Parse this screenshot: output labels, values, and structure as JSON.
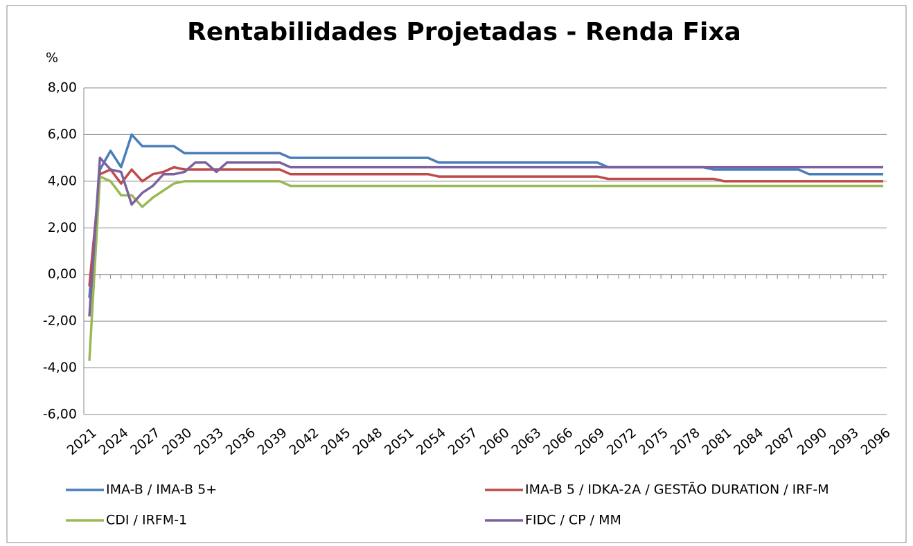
{
  "chart_data": {
    "type": "line",
    "title": "Rentabilidades Projetadas - Renda Fixa",
    "y_label": "%",
    "categories": [
      "2021",
      null,
      null,
      "2024",
      null,
      null,
      "2027",
      null,
      null,
      "2030",
      null,
      null,
      "2033",
      null,
      null,
      "2036",
      null,
      null,
      "2039",
      null,
      null,
      "2042",
      null,
      null,
      "2045",
      null,
      null,
      "2048",
      null,
      null,
      "2051",
      null,
      null,
      "2054",
      null,
      null,
      "2057",
      null,
      null,
      "2060",
      null,
      null,
      "2063",
      null,
      null,
      "2066",
      null,
      null,
      "2069",
      null,
      null,
      "2072",
      null,
      null,
      "2075",
      null,
      null,
      "2078",
      null,
      null,
      "2081",
      null,
      null,
      "2084",
      null,
      null,
      "2087",
      null,
      null,
      "2090",
      null,
      null,
      "2093",
      null,
      null,
      "2096"
    ],
    "ylim": [
      -6,
      8
    ],
    "yticks": [
      {
        "value": -6,
        "label": "-6,00"
      },
      {
        "value": -4,
        "label": "-4,00"
      },
      {
        "value": -2,
        "label": "-2,00"
      },
      {
        "value": 0,
        "label": "0,00"
      },
      {
        "value": 2,
        "label": "2,00"
      },
      {
        "value": 4,
        "label": "4,00"
      },
      {
        "value": 6,
        "label": "6,00"
      },
      {
        "value": 8,
        "label": "8,00"
      }
    ],
    "grid": true,
    "series": [
      {
        "name": "IMA-B / IMA-B 5+",
        "color": "#4a7ebb",
        "values": [
          -1.0,
          4.5,
          5.3,
          4.6,
          6.0,
          5.5,
          5.5,
          5.5,
          5.5,
          5.2,
          5.2,
          5.2,
          5.2,
          5.2,
          5.2,
          5.2,
          5.2,
          5.2,
          5.2,
          5.0,
          5.0,
          5.0,
          5.0,
          5.0,
          5.0,
          5.0,
          5.0,
          5.0,
          5.0,
          5.0,
          5.0,
          5.0,
          5.0,
          4.8,
          4.8,
          4.8,
          4.8,
          4.8,
          4.8,
          4.8,
          4.8,
          4.8,
          4.8,
          4.8,
          4.8,
          4.8,
          4.8,
          4.8,
          4.8,
          4.6,
          4.6,
          4.6,
          4.6,
          4.6,
          4.6,
          4.6,
          4.6,
          4.6,
          4.6,
          4.5,
          4.5,
          4.5,
          4.5,
          4.5,
          4.5,
          4.5,
          4.5,
          4.5,
          4.3,
          4.3,
          4.3,
          4.3,
          4.3,
          4.3,
          4.3,
          4.3
        ]
      },
      {
        "name": "IMA-B 5 / IDKA-2A / GESTÃO DURATION / IRF-M",
        "color": "#be4b48",
        "values": [
          -0.5,
          4.3,
          4.5,
          3.9,
          4.5,
          4.0,
          4.3,
          4.4,
          4.6,
          4.5,
          4.5,
          4.5,
          4.5,
          4.5,
          4.5,
          4.5,
          4.5,
          4.5,
          4.5,
          4.3,
          4.3,
          4.3,
          4.3,
          4.3,
          4.3,
          4.3,
          4.3,
          4.3,
          4.3,
          4.3,
          4.3,
          4.3,
          4.3,
          4.2,
          4.2,
          4.2,
          4.2,
          4.2,
          4.2,
          4.2,
          4.2,
          4.2,
          4.2,
          4.2,
          4.2,
          4.2,
          4.2,
          4.2,
          4.2,
          4.1,
          4.1,
          4.1,
          4.1,
          4.1,
          4.1,
          4.1,
          4.1,
          4.1,
          4.1,
          4.1,
          4.0,
          4.0,
          4.0,
          4.0,
          4.0,
          4.0,
          4.0,
          4.0,
          4.0,
          4.0,
          4.0,
          4.0,
          4.0,
          4.0,
          4.0,
          4.0
        ]
      },
      {
        "name": "CDI / IRFM-1",
        "color": "#98b954",
        "values": [
          -3.7,
          4.2,
          4.0,
          3.4,
          3.4,
          2.9,
          3.3,
          3.6,
          3.9,
          4.0,
          4.0,
          4.0,
          4.0,
          4.0,
          4.0,
          4.0,
          4.0,
          4.0,
          4.0,
          3.8,
          3.8,
          3.8,
          3.8,
          3.8,
          3.8,
          3.8,
          3.8,
          3.8,
          3.8,
          3.8,
          3.8,
          3.8,
          3.8,
          3.8,
          3.8,
          3.8,
          3.8,
          3.8,
          3.8,
          3.8,
          3.8,
          3.8,
          3.8,
          3.8,
          3.8,
          3.8,
          3.8,
          3.8,
          3.8,
          3.8,
          3.8,
          3.8,
          3.8,
          3.8,
          3.8,
          3.8,
          3.8,
          3.8,
          3.8,
          3.8,
          3.8,
          3.8,
          3.8,
          3.8,
          3.8,
          3.8,
          3.8,
          3.8,
          3.8,
          3.8,
          3.8,
          3.8,
          3.8,
          3.8,
          3.8,
          3.8
        ]
      },
      {
        "name": "FIDC / CP / MM",
        "color": "#7d60a0",
        "values": [
          -1.8,
          5.0,
          4.5,
          4.4,
          3.0,
          3.5,
          3.8,
          4.3,
          4.3,
          4.4,
          4.8,
          4.8,
          4.4,
          4.8,
          4.8,
          4.8,
          4.8,
          4.8,
          4.8,
          4.6,
          4.6,
          4.6,
          4.6,
          4.6,
          4.6,
          4.6,
          4.6,
          4.6,
          4.6,
          4.6,
          4.6,
          4.6,
          4.6,
          4.6,
          4.6,
          4.6,
          4.6,
          4.6,
          4.6,
          4.6,
          4.6,
          4.6,
          4.6,
          4.6,
          4.6,
          4.6,
          4.6,
          4.6,
          4.6,
          4.6,
          4.6,
          4.6,
          4.6,
          4.6,
          4.6,
          4.6,
          4.6,
          4.6,
          4.6,
          4.6,
          4.6,
          4.6,
          4.6,
          4.6,
          4.6,
          4.6,
          4.6,
          4.6,
          4.6,
          4.6,
          4.6,
          4.6,
          4.6,
          4.6,
          4.6,
          4.6
        ]
      }
    ]
  }
}
